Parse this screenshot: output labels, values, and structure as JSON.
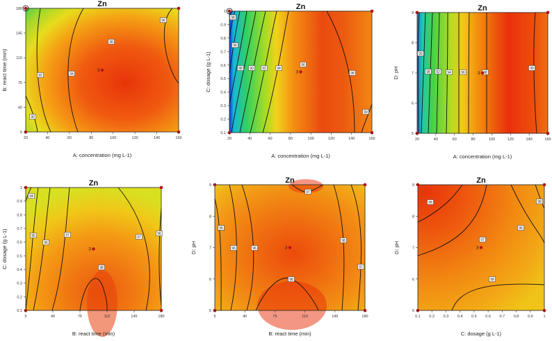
{
  "chart_data": [
    {
      "type": "contour",
      "title": "Zn",
      "xlabel": "A: concentration (mg L-1)",
      "ylabel": "B: react time (min)",
      "xlim": [
        20,
        160
      ],
      "ylim": [
        5,
        180
      ],
      "xticks": [
        "20",
        "40",
        "60",
        "80",
        "100",
        "120",
        "140",
        "160"
      ],
      "yticks": [
        "5",
        "40",
        "75",
        "110",
        "145",
        "180"
      ],
      "design_point": {
        "x": 90,
        "y": 92.5,
        "label": "3"
      },
      "hot_spot": {
        "x": 120,
        "y": 75
      },
      "contour_labels": [
        "90",
        "92",
        "94",
        "96",
        "98"
      ],
      "colormap": "blue-green-yellow-red"
    },
    {
      "type": "contour",
      "title": "Zn",
      "xlabel": "A: concentration (mg L-1)",
      "ylabel": "C: dosage (g L-1)",
      "xlim": [
        20,
        160
      ],
      "ylim": [
        0.1,
        1
      ],
      "xticks": [
        "20",
        "40",
        "60",
        "80",
        "100",
        "120",
        "140",
        "160"
      ],
      "yticks": [
        "0.1",
        "0.2",
        "0.3",
        "0.4",
        "0.5",
        "0.6",
        "0.7",
        "0.8",
        "0.9",
        "1"
      ],
      "design_point": {
        "x": 90,
        "y": 0.55,
        "label": "3"
      },
      "contour_labels": [
        "85",
        "86",
        "88",
        "90",
        "92",
        "94",
        "96",
        "98",
        "99",
        "98",
        "96"
      ],
      "colormap": "blue-green-yellow-red"
    },
    {
      "type": "contour",
      "title": "Zn",
      "xlabel": "A: concentration (mg L-1)",
      "ylabel": "D: pH",
      "xlim": [
        20,
        160
      ],
      "ylim": [
        5,
        9
      ],
      "xticks": [
        "20",
        "40",
        "60",
        "80",
        "100",
        "120",
        "140",
        "160"
      ],
      "yticks": [
        "5",
        "6",
        "7",
        "8",
        "9"
      ],
      "design_point": {
        "x": 90,
        "y": 7,
        "label": "3"
      },
      "contour_labels": [
        "88",
        "90",
        "92",
        "94",
        "96",
        "98",
        "99",
        "99",
        "98"
      ],
      "colormap": "blue-green-yellow-red"
    },
    {
      "type": "contour",
      "title": "Zn",
      "xlabel": "B: react time (min)",
      "ylabel": "C: dosage (g L-1)",
      "xlim": [
        5,
        180
      ],
      "ylim": [
        0.1,
        1
      ],
      "xticks": [
        "5",
        "40",
        "75",
        "110",
        "145",
        "180"
      ],
      "yticks": [
        "0.1",
        "0.2",
        "0.3",
        "0.4",
        "0.5",
        "0.6",
        "0.7",
        "0.8",
        "0.9",
        "1"
      ],
      "design_point": {
        "x": 92.5,
        "y": 0.55,
        "label": "3"
      },
      "contour_labels": [
        "94",
        "95",
        "96",
        "97",
        "98",
        "97",
        "96"
      ],
      "colormap": "blue-green-yellow-red"
    },
    {
      "type": "contour",
      "title": "Zn",
      "xlabel": "B: react time (min)",
      "ylabel": "D: pH",
      "xlim": [
        5,
        180
      ],
      "ylim": [
        5,
        9
      ],
      "xticks": [
        "5",
        "40",
        "75",
        "110",
        "145",
        "180"
      ],
      "yticks": [
        "5",
        "6",
        "7",
        "8",
        "9"
      ],
      "design_point": {
        "x": 92.5,
        "y": 7,
        "label": "3"
      },
      "contour_labels": [
        "96",
        "96",
        "96",
        "97",
        "98",
        "98",
        "97",
        "96"
      ],
      "colormap": "blue-green-yellow-red"
    },
    {
      "type": "contour",
      "title": "Zn",
      "xlabel": "C: dosage (g L-1)",
      "ylabel": "D: pH",
      "xlim": [
        0.1,
        1
      ],
      "ylim": [
        5,
        9
      ],
      "xticks": [
        "0.1",
        "0.2",
        "0.3",
        "0.4",
        "0.5",
        "0.6",
        "0.7",
        "0.8",
        "0.9",
        "1"
      ],
      "yticks": [
        "5",
        "6",
        "7",
        "8",
        "9"
      ],
      "design_point": {
        "x": 0.55,
        "y": 7,
        "label": "3"
      },
      "contour_labels": [
        "98",
        "97",
        "96",
        "98",
        "98"
      ],
      "colormap": "blue-green-yellow-red"
    }
  ]
}
